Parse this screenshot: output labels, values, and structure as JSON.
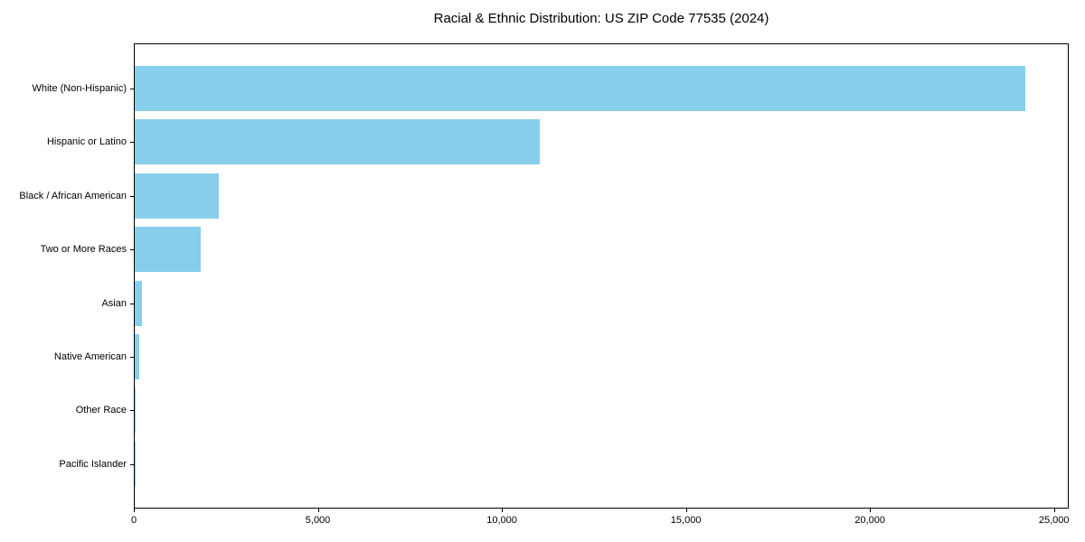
{
  "chart_data": {
    "type": "bar",
    "orientation": "horizontal",
    "title": "Racial & Ethnic Distribution: US ZIP Code 77535 (2024)",
    "categories": [
      "White (Non-Hispanic)",
      "Hispanic or Latino",
      "Black / African American",
      "Two or More Races",
      "Asian",
      "Native American",
      "Other Race",
      "Pacific Islander"
    ],
    "values": [
      24200,
      11000,
      2280,
      1790,
      200,
      130,
      30,
      10
    ],
    "xlabel": "",
    "ylabel": "",
    "x_ticks": [
      0,
      5000,
      10000,
      15000,
      20000,
      25000
    ],
    "x_tick_labels": [
      "0",
      "5,000",
      "10,000",
      "15,000",
      "20,000",
      "25,000"
    ],
    "xlim": [
      0,
      25400
    ],
    "bar_color": "#87CEEB",
    "axis_color": "#000000",
    "text_color": "#000000",
    "grid": false,
    "legend": null
  }
}
